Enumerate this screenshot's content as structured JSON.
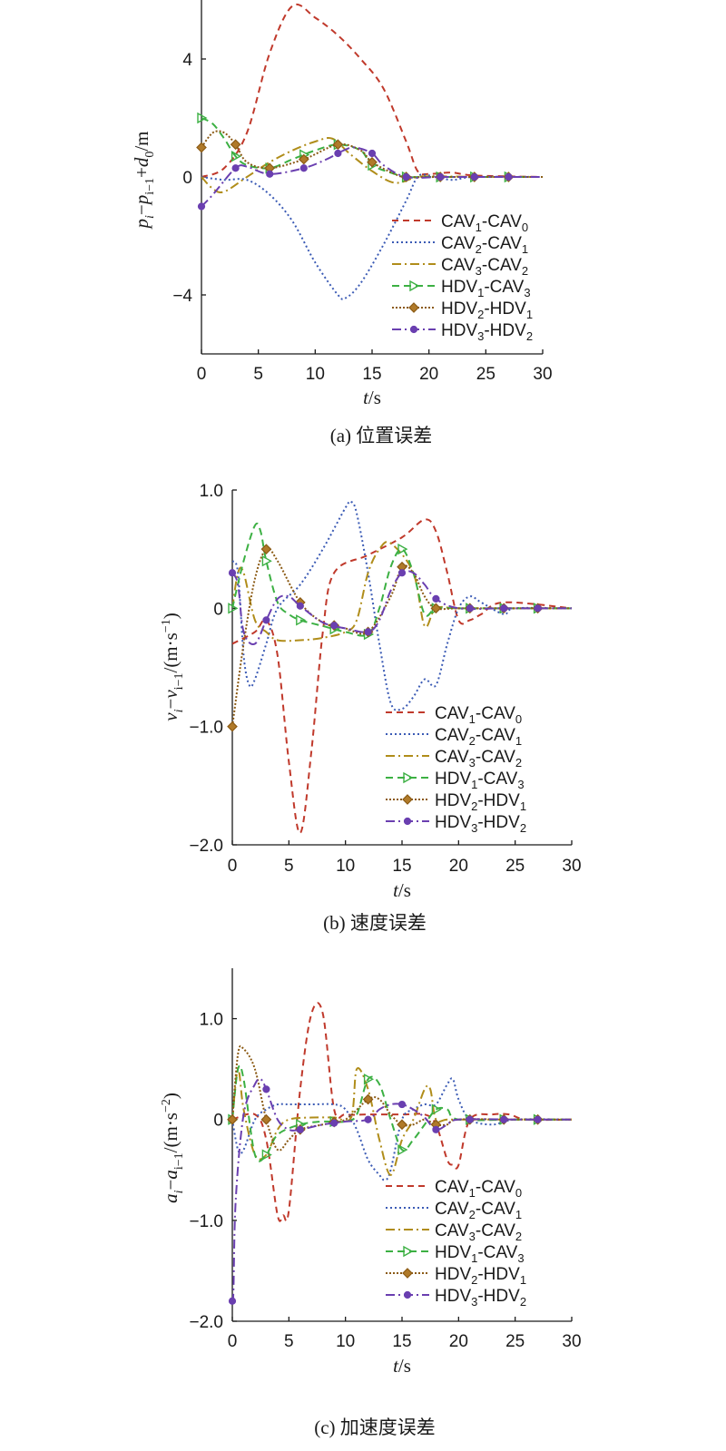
{
  "legend": [
    {
      "base": "CAV",
      "sub1": "1",
      "mid": "-CAV",
      "sub2": "0"
    },
    {
      "base": "CAV",
      "sub1": "2",
      "mid": "-CAV",
      "sub2": "1"
    },
    {
      "base": "CAV",
      "sub1": "3",
      "mid": "-CAV",
      "sub2": "2"
    },
    {
      "base": "HDV",
      "sub1": "1",
      "mid": "-CAV",
      "sub2": "3"
    },
    {
      "base": "HDV",
      "sub1": "2",
      "mid": "-HDV",
      "sub2": "1"
    },
    {
      "base": "HDV",
      "sub1": "3",
      "mid": "-HDV",
      "sub2": "2"
    }
  ],
  "colors": [
    "#c0392b",
    "#3b5bb5",
    "#b08d1a",
    "#3cb043",
    "#8b5a14",
    "#6a3fb0"
  ],
  "chart_data": [
    {
      "type": "line",
      "caption": "(a) 位置误差",
      "xlabel": "t/s",
      "ylabel": "p_i−p_i−1+d_0/m",
      "xlim": [
        0,
        30
      ],
      "ylim": [
        -6,
        6
      ],
      "xticks": [
        0,
        5,
        10,
        15,
        20,
        25,
        30
      ],
      "yticks": [
        -4,
        0,
        4
      ],
      "legend_position": "bottom-right",
      "series": [
        {
          "name": "CAV1-CAV0",
          "x": [
            0,
            2,
            4,
            6,
            8,
            10,
            12,
            14,
            16,
            18,
            19,
            20,
            22,
            24,
            30
          ],
          "y": [
            0,
            0.3,
            1.5,
            4.2,
            5.8,
            5.4,
            4.8,
            4.0,
            3.0,
            1.2,
            0.2,
            0.1,
            0.15,
            0.05,
            0
          ]
        },
        {
          "name": "CAV2-CAV1",
          "x": [
            0,
            2,
            4,
            6,
            8,
            10,
            12,
            12.7,
            14,
            16,
            18,
            19,
            20,
            22,
            24,
            30
          ],
          "y": [
            0,
            -0.1,
            -0.1,
            -0.6,
            -1.5,
            -2.9,
            -4.0,
            -4.1,
            -3.6,
            -2.3,
            -0.8,
            0,
            0.05,
            -0.1,
            0,
            0
          ]
        },
        {
          "name": "CAV3-CAV2",
          "x": [
            0,
            1,
            2,
            4,
            6,
            8,
            10,
            11.5,
            13,
            15,
            17,
            19,
            21,
            25,
            30
          ],
          "y": [
            0,
            -0.4,
            -0.5,
            0,
            0.5,
            0.9,
            1.2,
            1.3,
            0.8,
            0.2,
            -0.2,
            0,
            0.02,
            0,
            0
          ]
        },
        {
          "name": "HDV1-CAV3",
          "x": [
            0,
            1,
            2,
            3,
            4,
            6,
            8,
            10,
            12,
            14,
            15,
            17,
            18,
            20,
            25,
            30
          ],
          "y": [
            2.0,
            1.8,
            1.3,
            0.7,
            0.4,
            0.3,
            0.6,
            0.9,
            1.1,
            0.9,
            0.4,
            0.1,
            0,
            0,
            0,
            0
          ]
        },
        {
          "name": "HDV2-HDV1",
          "x": [
            0,
            1,
            2,
            3,
            4,
            6,
            9,
            12,
            14,
            15,
            17,
            18,
            21,
            24,
            27,
            30
          ],
          "y": [
            1.0,
            1.5,
            1.5,
            1.1,
            0.5,
            0.3,
            0.6,
            1.1,
            0.9,
            0.5,
            0.1,
            0,
            0,
            0,
            0,
            0
          ]
        },
        {
          "name": "HDV3-HDV2",
          "x": [
            0,
            1,
            3,
            4,
            6,
            9,
            11,
            12.5,
            13.5,
            15,
            16,
            18,
            21,
            24,
            27,
            30
          ],
          "y": [
            -1.0,
            -0.6,
            0.3,
            0.35,
            0.1,
            0.3,
            0.6,
            0.9,
            1.0,
            0.8,
            0.4,
            0,
            0,
            0,
            0,
            0
          ]
        }
      ]
    },
    {
      "type": "line",
      "caption": "(b) 速度误差",
      "xlabel": "t/s",
      "ylabel": "v_i−v_i−1/(m·s⁻¹)",
      "xlim": [
        0,
        30
      ],
      "ylim": [
        -2,
        1
      ],
      "xticks": [
        0,
        5,
        10,
        15,
        20,
        25,
        30
      ],
      "yticks": [
        -2.0,
        -1.0,
        0,
        1.0
      ],
      "ytick_labels": [
        "−2.0",
        "−1.0",
        "0",
        "1.0"
      ],
      "legend_position": "bottom-right",
      "series": [
        {
          "name": "CAV1-CAV0",
          "x": [
            0,
            2,
            3,
            4,
            5,
            6,
            7,
            8,
            9,
            12,
            15,
            17,
            18,
            19,
            20,
            21,
            22,
            24,
            30
          ],
          "y": [
            -0.3,
            -0.2,
            -0.1,
            -0.4,
            -1.3,
            -1.9,
            -1.2,
            -0.2,
            0.3,
            0.45,
            0.6,
            0.75,
            0.65,
            0.3,
            -0.1,
            -0.1,
            -0.05,
            0.05,
            0
          ]
        },
        {
          "name": "CAV2-CAV1",
          "x": [
            0,
            0.5,
            1,
            1.5,
            2,
            3,
            4,
            6,
            8,
            10,
            10.5,
            11,
            12,
            13,
            14,
            15,
            16,
            17,
            18,
            19,
            20,
            21,
            22,
            24,
            25,
            30
          ],
          "y": [
            0.4,
            0.3,
            -0.4,
            -0.65,
            -0.6,
            -0.3,
            0,
            0.2,
            0.5,
            0.85,
            0.9,
            0.8,
            0.3,
            -0.3,
            -0.8,
            -0.85,
            -0.75,
            -0.6,
            -0.65,
            -0.3,
            0,
            0.1,
            0.05,
            -0.05,
            0,
            0
          ]
        },
        {
          "name": "CAV3-CAV2",
          "x": [
            0,
            0.5,
            1,
            2,
            3,
            4,
            6,
            8,
            10,
            11,
            12,
            13,
            14,
            16,
            17,
            18,
            20,
            25,
            30
          ],
          "y": [
            0,
            0.3,
            0.3,
            -0.1,
            -0.2,
            -0.27,
            -0.27,
            -0.25,
            -0.2,
            -0.1,
            0.3,
            0.5,
            0.55,
            0.3,
            -0.15,
            0,
            0,
            0,
            0
          ]
        },
        {
          "name": "HDV1-CAV3",
          "x": [
            0,
            1,
            2,
            2.5,
            3,
            4,
            5,
            6,
            8,
            10,
            12,
            13,
            14,
            15,
            16,
            17,
            18,
            20,
            25,
            30
          ],
          "y": [
            0,
            0.4,
            0.7,
            0.65,
            0.4,
            0.05,
            -0.05,
            -0.1,
            -0.15,
            -0.2,
            -0.22,
            0,
            0.35,
            0.5,
            0.3,
            -0.05,
            0,
            0,
            0,
            0
          ]
        },
        {
          "name": "HDV2-HDV1",
          "x": [
            0,
            1,
            2,
            3,
            4,
            6,
            8,
            10,
            12,
            14,
            15,
            16,
            17,
            18,
            20,
            25,
            30
          ],
          "y": [
            -1.0,
            -0.3,
            0.25,
            0.5,
            0.4,
            0.05,
            -0.12,
            -0.17,
            -0.2,
            0.1,
            0.35,
            0.3,
            0.1,
            0,
            0,
            0,
            0
          ]
        },
        {
          "name": "HDV3-HDV2",
          "x": [
            0,
            0.5,
            1,
            2,
            3,
            4,
            5,
            6,
            8,
            10,
            12,
            13,
            14,
            15,
            16,
            17,
            18,
            20,
            24,
            27,
            30
          ],
          "y": [
            0.3,
            0.2,
            -0.2,
            -0.3,
            -0.1,
            0.08,
            0.1,
            0.02,
            -0.12,
            -0.17,
            -0.2,
            -0.1,
            0.15,
            0.3,
            0.3,
            0.2,
            0.08,
            0,
            0,
            0,
            0
          ]
        }
      ]
    },
    {
      "type": "line",
      "caption": "(c) 加速度误差",
      "xlabel": "t/s",
      "ylabel": "a_i−a_i−1/(m·s⁻²)",
      "xlim": [
        0,
        30
      ],
      "ylim": [
        -2,
        1.5
      ],
      "xticks": [
        0,
        5,
        10,
        15,
        20,
        25,
        30
      ],
      "yticks": [
        -2.0,
        -1.0,
        0,
        1.0
      ],
      "ytick_labels": [
        "−2.0",
        "−1.0",
        "0",
        "1.0"
      ],
      "legend_position": "bottom-right",
      "series": [
        {
          "name": "CAV1-CAV0",
          "x": [
            0,
            2,
            3,
            4,
            4.5,
            5,
            6,
            7,
            8,
            9,
            10,
            12,
            15,
            17,
            18,
            19,
            19.5,
            20,
            21,
            23,
            24.5,
            26,
            30
          ],
          "y": [
            0,
            0.05,
            -0.2,
            -0.95,
            -0.95,
            -0.9,
            0.3,
            1.05,
            1.05,
            0.1,
            0.05,
            0.05,
            0.05,
            0.05,
            -0.05,
            -0.4,
            -0.45,
            -0.45,
            0,
            0.05,
            0.05,
            0,
            0
          ]
        },
        {
          "name": "CAV2-CAV1",
          "x": [
            0,
            0.5,
            1,
            2,
            3,
            4,
            5,
            7,
            9,
            10,
            11,
            12,
            13,
            13.5,
            14,
            15,
            16,
            17,
            18,
            19,
            19.5,
            20,
            21,
            23,
            25,
            30
          ],
          "y": [
            0,
            -0.3,
            -0.3,
            0,
            0.1,
            0.15,
            0.15,
            0.15,
            0.15,
            0.1,
            -0.1,
            -0.4,
            -0.55,
            -0.6,
            -0.5,
            0,
            0.1,
            0.15,
            0.15,
            0.35,
            0.4,
            0.2,
            0,
            -0.05,
            0,
            0
          ]
        },
        {
          "name": "CAV3-CAV2",
          "x": [
            0,
            0.5,
            1,
            2,
            3,
            4,
            5,
            7,
            9,
            10.5,
            11,
            12,
            13,
            14,
            15,
            16,
            17,
            17.5,
            18,
            19,
            21,
            25,
            30
          ],
          "y": [
            0,
            0.5,
            0.1,
            -0.35,
            -0.35,
            -0.1,
            0,
            0.02,
            0.02,
            0.02,
            0.5,
            0.3,
            -0.2,
            -0.55,
            -0.2,
            0,
            0.3,
            0.3,
            0,
            0,
            0,
            0,
            0
          ]
        },
        {
          "name": "HDV1-CAV3",
          "x": [
            0,
            0.5,
            1,
            2,
            3,
            4,
            6,
            8,
            10,
            11,
            12,
            13,
            14,
            15,
            16,
            17,
            18,
            19,
            20,
            25,
            30
          ],
          "y": [
            0,
            0.5,
            0.4,
            -0.35,
            -0.35,
            -0.15,
            -0.05,
            -0.02,
            -0.02,
            0.05,
            0.4,
            0.35,
            0,
            -0.3,
            -0.2,
            -0.05,
            0.1,
            0.1,
            0,
            0,
            0
          ]
        },
        {
          "name": "HDV2-HDV1",
          "x": [
            0,
            0.5,
            1,
            2,
            3,
            4,
            5,
            6,
            8,
            10,
            12,
            13,
            14,
            15,
            16,
            17,
            18,
            19,
            20,
            25,
            30
          ],
          "y": [
            0,
            0.65,
            0.7,
            0.5,
            0,
            -0.3,
            -0.2,
            -0.1,
            -0.05,
            0,
            0.2,
            0.2,
            0.05,
            -0.05,
            -0.05,
            0,
            -0.05,
            -0.05,
            0,
            0,
            0
          ]
        },
        {
          "name": "HDV3-HDV2",
          "x": [
            0,
            0.1,
            0.3,
            1,
            2,
            2.5,
            3,
            4,
            5,
            6,
            8,
            10,
            12,
            13,
            14,
            15,
            16,
            17,
            18,
            19,
            20,
            25,
            27,
            30
          ],
          "y": [
            -1.8,
            -1.7,
            -0.8,
            0.05,
            0.35,
            0.4,
            0.3,
            0,
            -0.1,
            -0.1,
            -0.05,
            -0.02,
            0,
            0.1,
            0.15,
            0.15,
            0.1,
            0.02,
            -0.1,
            -0.05,
            0,
            0,
            0,
            0
          ]
        }
      ]
    }
  ]
}
